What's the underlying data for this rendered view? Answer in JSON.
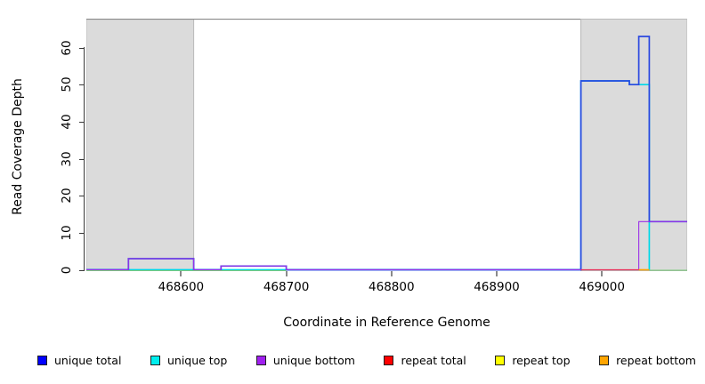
{
  "figure": {
    "xlabel": "Coordinate in Reference Genome",
    "ylabel": "Read Coverage Depth"
  },
  "chart_data": {
    "type": "line",
    "subtype": "step-coverage-plot",
    "title": "",
    "xlabel": "Coordinate in Reference Genome",
    "ylabel": "Read Coverage Depth",
    "xlim": [
      468510,
      469081
    ],
    "ylim": [
      0,
      68
    ],
    "grid": false,
    "legend_position": "bottom",
    "xticks": [
      468600,
      468700,
      468800,
      468900,
      469000
    ],
    "xtick_labels": [
      "468600",
      "468700",
      "468800",
      "468900",
      "469000"
    ],
    "yticks": [
      0,
      10,
      20,
      30,
      40,
      50,
      60
    ],
    "ytick_labels": [
      "0",
      "10",
      "20",
      "30",
      "40",
      "50",
      "60"
    ],
    "top_border_color": "#8A8A8A",
    "shaded_regions": [
      {
        "name": "shaded-region-left",
        "from": 468510,
        "to": 468612,
        "fill": "#DBDBDB",
        "stroke": "#BABABA"
      },
      {
        "name": "shaded-region-right",
        "from": 468980,
        "to": 469081,
        "fill": "#DBDBDB",
        "stroke": "#BABABA"
      }
    ],
    "series": [
      {
        "name": "unique total",
        "color": "#2B48E0",
        "z": 2,
        "draw": true,
        "width": 1.7,
        "steps": [
          [
            468510,
            0
          ],
          [
            468550,
            3
          ],
          [
            468612,
            0
          ],
          [
            468638,
            1
          ],
          [
            468700,
            0
          ],
          [
            468980,
            51
          ],
          [
            469026,
            50
          ],
          [
            469035,
            63
          ],
          [
            469045,
            13
          ],
          [
            469081,
            13
          ]
        ]
      },
      {
        "name": "unique top",
        "color": "#00D8E8",
        "z": 1,
        "draw": true,
        "width": 1.7,
        "steps": [
          [
            468510,
            0
          ],
          [
            468980,
            51
          ],
          [
            469026,
            50
          ],
          [
            469045,
            0
          ]
        ]
      },
      {
        "name": "unique bottom",
        "color": "#9B30E8",
        "z": 3,
        "draw": true,
        "width": 1.1,
        "steps": [
          [
            468510,
            0
          ],
          [
            468550,
            3
          ],
          [
            468612,
            0
          ],
          [
            468638,
            1
          ],
          [
            468700,
            0
          ],
          [
            469035,
            13
          ],
          [
            469081,
            13
          ]
        ]
      },
      {
        "name": "repeat total",
        "color": "#E8305A",
        "z": 4,
        "draw": false,
        "width": 1.2,
        "steps": [
          [
            468980,
            0
          ],
          [
            469035,
            0
          ]
        ]
      },
      {
        "name": "repeat top",
        "color": "#F0E800",
        "z": 5,
        "draw": false,
        "width": 1.1,
        "steps": [
          [
            468510,
            0
          ],
          [
            469081,
            0
          ]
        ]
      },
      {
        "name": "repeat bottom",
        "color": "#FFA500",
        "z": 6,
        "draw": false,
        "width": 1.6,
        "steps": [
          [
            469035,
            0
          ],
          [
            469045,
            0
          ]
        ]
      }
    ],
    "baseline_overlay_segments": [
      {
        "name": "zero-baseline-blend-left",
        "color": "#7CC87C",
        "from": 468510,
        "to": 468700,
        "dy": 1.0,
        "width": 1.1
      },
      {
        "name": "repeat-total-zero-line",
        "color": "#E8305A",
        "from": 468980,
        "to": 469035,
        "dy": 0,
        "width": 1.2
      },
      {
        "name": "repeat-bottom-zero-line",
        "color": "#FFA500",
        "from": 469035,
        "to": 469045,
        "dy": 0,
        "width": 1.6
      },
      {
        "name": "zero-baseline-blend-right",
        "color": "#7CC87C",
        "from": 469045,
        "to": 469081,
        "dy": 0.6,
        "width": 1.1
      }
    ]
  },
  "legend": {
    "items": [
      {
        "label": "unique total",
        "color": "#0000FF"
      },
      {
        "label": "unique top",
        "color": "#00EEEE"
      },
      {
        "label": "unique bottom",
        "color": "#A020F0"
      },
      {
        "label": "repeat total",
        "color": "#FF0000"
      },
      {
        "label": "repeat top",
        "color": "#FFFF00"
      },
      {
        "label": "repeat bottom",
        "color": "#FFA500"
      }
    ]
  }
}
